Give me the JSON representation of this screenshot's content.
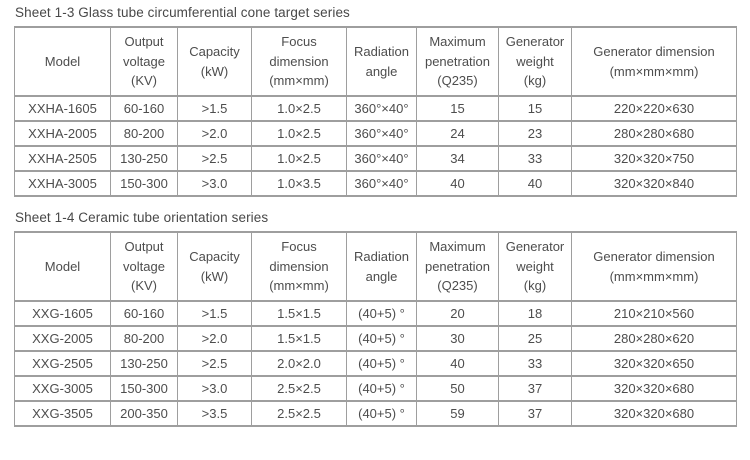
{
  "page": {
    "background_color": "#ffffff",
    "text_color": "#4d4d4d",
    "border_color": "#9e9e9e"
  },
  "tables": [
    {
      "title": "Sheet 1-3 Glass tube circumferential cone target series",
      "headers": [
        "Model",
        "Output\nvoltage\n(KV)",
        "Capacity\n(kW)",
        "Focus\ndimension\n(mm×mm)",
        "Radiation\nangle",
        "Maximum\npenetration\n(Q235)",
        "Generator\nweight\n(kg)",
        "Generator dimension\n(mm×mm×mm)"
      ],
      "rows": [
        [
          "XXHA-1605",
          "60-160",
          ">1.5",
          "1.0×2.5",
          "360°×40°",
          "15",
          "15",
          "220×220×630"
        ],
        [
          "XXHA-2005",
          "80-200",
          ">2.0",
          "1.0×2.5",
          "360°×40°",
          "24",
          "23",
          "280×280×680"
        ],
        [
          "XXHA-2505",
          "130-250",
          ">2.5",
          "1.0×2.5",
          "360°×40°",
          "34",
          "33",
          "320×320×750"
        ],
        [
          "XXHA-3005",
          "150-300",
          ">3.0",
          "1.0×3.5",
          "360°×40°",
          "40",
          "40",
          "320×320×840"
        ]
      ]
    },
    {
      "title": "Sheet 1-4 Ceramic tube orientation series",
      "headers": [
        "Model",
        "Output\nvoltage\n(KV)",
        "Capacity\n(kW)",
        "Focus\ndimension\n(mm×mm)",
        "Radiation\nangle",
        "Maximum\npenetration\n(Q235)",
        "Generator\nweight\n(kg)",
        "Generator dimension\n(mm×mm×mm)"
      ],
      "rows": [
        [
          "XXG-1605",
          "60-160",
          ">1.5",
          "1.5×1.5",
          "(40+5) °",
          "20",
          "18",
          "210×210×560"
        ],
        [
          "XXG-2005",
          "80-200",
          ">2.0",
          "1.5×1.5",
          "(40+5) °",
          "30",
          "25",
          "280×280×620"
        ],
        [
          "XXG-2505",
          "130-250",
          ">2.5",
          "2.0×2.0",
          "(40+5) °",
          "40",
          "33",
          "320×320×650"
        ],
        [
          "XXG-3005",
          "150-300",
          ">3.0",
          "2.5×2.5",
          "(40+5) °",
          "50",
          "37",
          "320×320×680"
        ],
        [
          "XXG-3505",
          "200-350",
          ">3.5",
          "2.5×2.5",
          "(40+5) °",
          "59",
          "37",
          "320×320×680"
        ]
      ]
    }
  ]
}
